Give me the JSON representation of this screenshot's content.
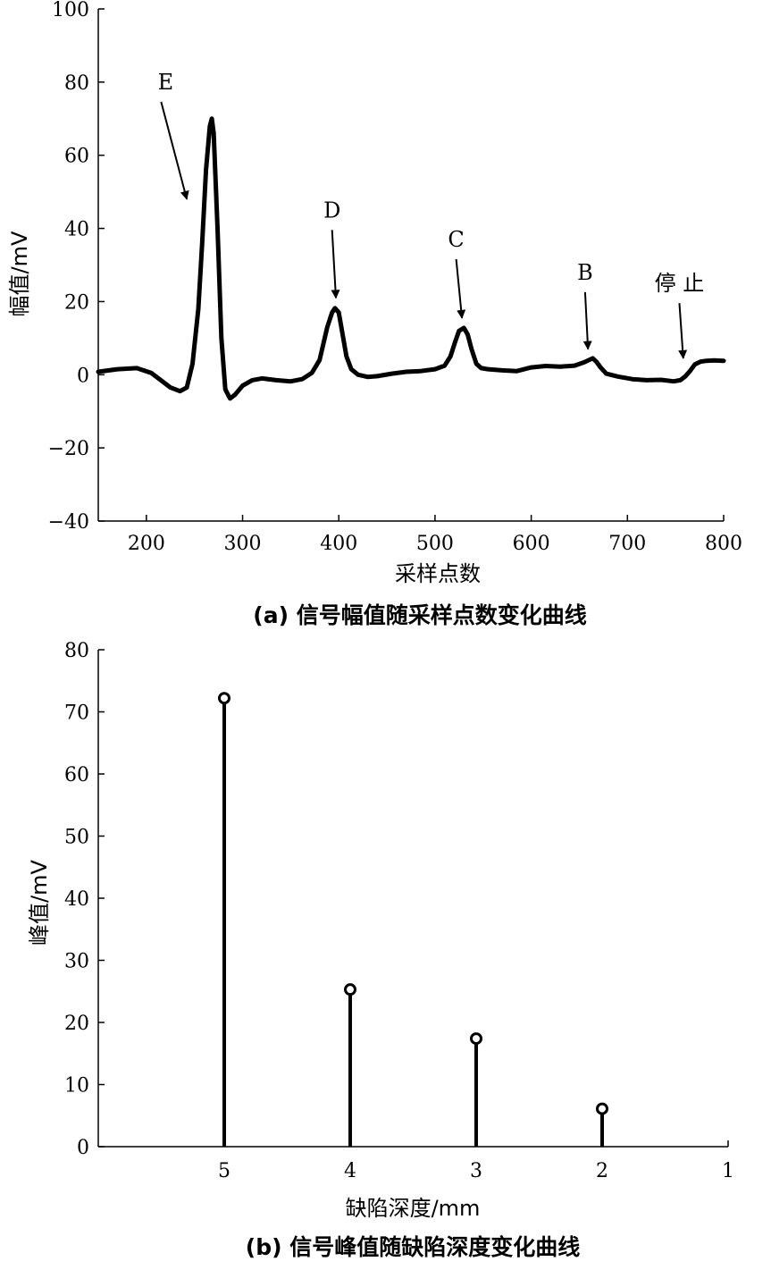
{
  "chart_data": [
    {
      "type": "line",
      "caption": "(a) 信号幅值随采样点数变化曲线",
      "title": "",
      "xlabel": "采样点数",
      "ylabel": "幅值/mV",
      "xlim": [
        150,
        800
      ],
      "ylim": [
        -40,
        100
      ],
      "xticks": [
        200,
        300,
        400,
        500,
        600,
        700,
        800
      ],
      "yticks": [
        -40,
        -20,
        0,
        20,
        40,
        60,
        80,
        100
      ],
      "grid": false,
      "series": [
        {
          "x": [
            150,
            170,
            190,
            205,
            215,
            225,
            235,
            242,
            248,
            254,
            258,
            262,
            266,
            268,
            270,
            274,
            278,
            282,
            287,
            292,
            300,
            310,
            320,
            335,
            350,
            362,
            372,
            380,
            388,
            393,
            396,
            400,
            404,
            408,
            413,
            420,
            430,
            440,
            455,
            470,
            485,
            500,
            510,
            516,
            521,
            525,
            530,
            534,
            538,
            543,
            548,
            555,
            570,
            585,
            600,
            615,
            630,
            645,
            655,
            660,
            664,
            668,
            672,
            678,
            690,
            705,
            720,
            735,
            748,
            755,
            760,
            765,
            770,
            776,
            782,
            790,
            800
          ],
          "y": [
            0.8,
            1.5,
            1.8,
            0.5,
            -1.5,
            -3.5,
            -4.5,
            -3.5,
            3,
            18,
            36,
            56,
            68,
            70,
            66,
            40,
            10,
            -4,
            -6.5,
            -5.5,
            -3,
            -1.5,
            -1,
            -1.5,
            -1.8,
            -1.2,
            0.5,
            4,
            13,
            17,
            18.2,
            17,
            11,
            5,
            1.5,
            0,
            -0.6,
            -0.4,
            0.3,
            0.8,
            1,
            1.5,
            2.5,
            5,
            9,
            12,
            12.8,
            11,
            7,
            3,
            1.8,
            1.5,
            1.2,
            1,
            2,
            2.4,
            2.2,
            2.5,
            3.4,
            4,
            4.5,
            3.5,
            2,
            0.3,
            -0.5,
            -1.2,
            -1.5,
            -1.4,
            -1.8,
            -1.5,
            -0.5,
            1,
            2.8,
            3.6,
            3.8,
            3.9,
            3.8
          ]
        }
      ],
      "annotations": [
        {
          "label": "E",
          "text_x": 220,
          "text_y": 78,
          "arrow_to_x": 242,
          "arrow_to_y": 48
        },
        {
          "label": "D",
          "text_x": 393,
          "text_y": 43,
          "arrow_to_x": 397,
          "arrow_to_y": 21
        },
        {
          "label": "C",
          "text_x": 522,
          "text_y": 35,
          "arrow_to_x": 528,
          "arrow_to_y": 15.5
        },
        {
          "label": "B",
          "text_x": 656,
          "text_y": 26,
          "arrow_to_x": 659,
          "arrow_to_y": 7
        },
        {
          "label": "停 止",
          "text_x": 754,
          "text_y": 23,
          "arrow_to_x": 758,
          "arrow_to_y": 4.5
        }
      ]
    },
    {
      "type": "stem",
      "caption": "(b) 信号峰值随缺陷深度变化曲线",
      "title": "",
      "xlabel": "缺陷深度/mm",
      "ylabel": "峰值/mV",
      "xlim": [
        6,
        1
      ],
      "ylim": [
        0,
        80
      ],
      "xticks": [
        5,
        4,
        3,
        2,
        1
      ],
      "yticks": [
        0,
        10,
        20,
        30,
        40,
        50,
        60,
        70,
        80
      ],
      "grid": false,
      "x": [
        5,
        4,
        3,
        2
      ],
      "values": [
        72.2,
        25.3,
        17.4,
        6.1
      ]
    }
  ]
}
